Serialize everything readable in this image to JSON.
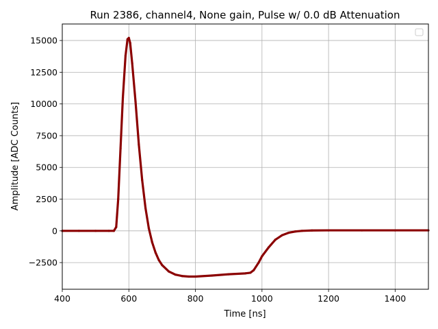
{
  "chart_data": {
    "type": "scatter",
    "title": "Run 2386, channel4, None gain, Pulse w/ 0.0 dB Attenuation",
    "xlabel": "Time [ns]",
    "ylabel": "Amplitude [ADC Counts]",
    "xlim": [
      400,
      1500
    ],
    "ylim": [
      -4600,
      16300
    ],
    "xticks": [
      400,
      600,
      800,
      1000,
      1200,
      1400
    ],
    "yticks": [
      -2500,
      0,
      2500,
      5000,
      7500,
      10000,
      12500,
      15000
    ],
    "xtick_labels": [
      "400",
      "600",
      "800",
      "1000",
      "1200",
      "1400"
    ],
    "ytick_labels": [
      "−2500",
      "0",
      "2500",
      "5000",
      "7500",
      "10000",
      "12500",
      "15000"
    ],
    "grid": true,
    "legend": "top-right (empty)",
    "color": "#8b0000",
    "series": [
      {
        "x": [
          400,
          450,
          500,
          540,
          555,
          562,
          568,
          575,
          582,
          590,
          596,
          600,
          604,
          610,
          620,
          630,
          640,
          650,
          660,
          670,
          680,
          690,
          700,
          720,
          740,
          760,
          780,
          800,
          850,
          900,
          950,
          965,
          975,
          990,
          1000,
          1020,
          1040,
          1060,
          1080,
          1100,
          1120,
          1150,
          1200,
          1300,
          1400,
          1500
        ],
        "y": [
          0,
          0,
          0,
          0,
          0,
          300,
          2500,
          6500,
          10500,
          13800,
          15100,
          15200,
          14800,
          13200,
          10200,
          6800,
          4000,
          1800,
          200,
          -900,
          -1700,
          -2300,
          -2700,
          -3200,
          -3450,
          -3560,
          -3600,
          -3600,
          -3520,
          -3420,
          -3350,
          -3300,
          -3100,
          -2500,
          -2000,
          -1300,
          -700,
          -350,
          -150,
          -50,
          0,
          30,
          40,
          40,
          40,
          40
        ]
      }
    ]
  }
}
